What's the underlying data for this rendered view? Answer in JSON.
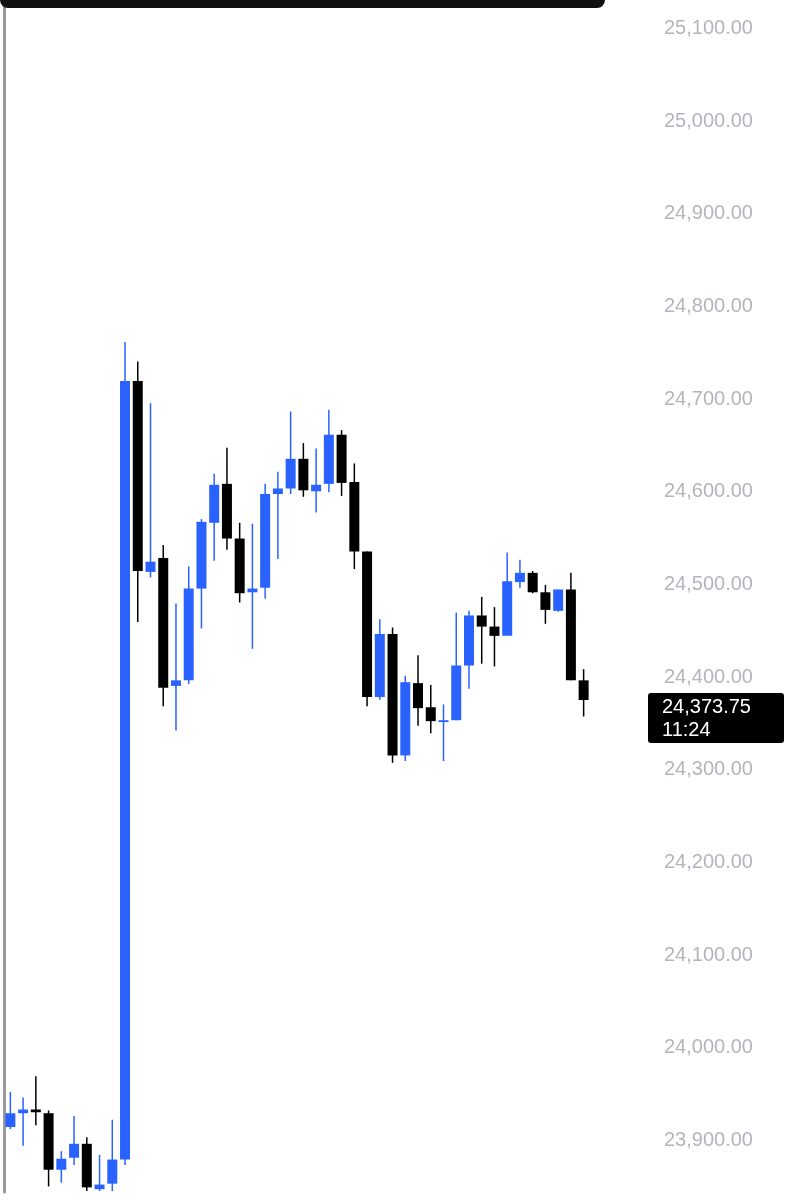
{
  "chart_data": {
    "type": "candlestick",
    "categories": [
      null,
      null,
      null,
      null,
      null,
      null,
      null,
      null,
      null,
      null,
      null,
      null,
      null,
      null,
      null,
      null,
      null,
      null,
      null,
      null,
      null,
      null,
      null,
      null,
      null,
      null,
      null,
      null,
      null,
      null,
      null,
      null,
      null,
      null,
      null,
      null,
      null,
      null,
      null,
      null,
      null,
      null,
      null,
      null,
      null,
      null
    ],
    "ohlc": [
      [
        23913,
        23951,
        23911,
        23928
      ],
      [
        23928,
        23945,
        23893,
        23932
      ],
      [
        23932,
        23968,
        23915,
        23929
      ],
      [
        23928,
        23931,
        23849,
        23867
      ],
      [
        23867,
        23887,
        23853,
        23879
      ],
      [
        23880,
        23925,
        23872,
        23895
      ],
      [
        23895,
        23902,
        23844,
        23848
      ],
      [
        23846,
        23883,
        23844,
        23851
      ],
      [
        23852,
        23921,
        23844,
        23878
      ],
      [
        23878,
        24760,
        23872,
        24718
      ],
      [
        24718,
        24739,
        24458,
        24513
      ],
      [
        24512,
        24694,
        24506,
        24523
      ],
      [
        24527,
        24541,
        24367,
        24387
      ],
      [
        24389,
        24478,
        24341,
        24395
      ],
      [
        24395,
        24518,
        24391,
        24494
      ],
      [
        24494,
        24569,
        24451,
        24566
      ],
      [
        24565,
        24618,
        24524,
        24606
      ],
      [
        24607,
        24646,
        24536,
        24548
      ],
      [
        24548,
        24565,
        24479,
        24489
      ],
      [
        24490,
        24564,
        24429,
        24494
      ],
      [
        24495,
        24607,
        24483,
        24596
      ],
      [
        24596,
        24620,
        24526,
        24602
      ],
      [
        24602,
        24685,
        24596,
        24634
      ],
      [
        24634,
        24651,
        24593,
        24600
      ],
      [
        24599,
        24645,
        24576,
        24606
      ],
      [
        24607,
        24687,
        24598,
        24660
      ],
      [
        24660,
        24665,
        24594,
        24608
      ],
      [
        24609,
        24629,
        24515,
        24534
      ],
      [
        24534,
        24534,
        24367,
        24377
      ],
      [
        24377,
        24461,
        24374,
        24445
      ],
      [
        24445,
        24452,
        24306,
        24314
      ],
      [
        24314,
        24400,
        24308,
        24393
      ],
      [
        24392,
        24422,
        24346,
        24365
      ],
      [
        24366,
        24390,
        24338,
        24351
      ],
      [
        24350,
        24369,
        24308,
        24352
      ],
      [
        24352,
        24468,
        24352,
        24411
      ],
      [
        24411,
        24470,
        24386,
        24465
      ],
      [
        24465,
        24485,
        24413,
        24453
      ],
      [
        24453,
        24474,
        24410,
        24443
      ],
      [
        24443,
        24533,
        24443,
        24502
      ],
      [
        24501,
        24525,
        24495,
        24511
      ],
      [
        24511,
        24513,
        24489,
        24490
      ],
      [
        24490,
        24498,
        24456,
        24471
      ],
      [
        24470,
        24493,
        24469,
        24493
      ],
      [
        24493,
        24511,
        24395,
        24395
      ],
      [
        24395,
        24407,
        24356,
        24373.75
      ]
    ],
    "colors": [
      "#2962ff",
      "#2962ff",
      "#000000",
      "#000000",
      "#2962ff",
      "#2962ff",
      "#000000",
      "#2962ff",
      "#2962ff",
      "#2962ff",
      "#000000",
      "#2962ff",
      "#000000",
      "#2962ff",
      "#2962ff",
      "#2962ff",
      "#2962ff",
      "#000000",
      "#000000",
      "#2962ff",
      "#2962ff",
      "#2962ff",
      "#2962ff",
      "#000000",
      "#2962ff",
      "#2962ff",
      "#000000",
      "#000000",
      "#000000",
      "#2962ff",
      "#000000",
      "#2962ff",
      "#000000",
      "#000000",
      "#2962ff",
      "#2962ff",
      "#2962ff",
      "#000000",
      "#000000",
      "#2962ff",
      "#2962ff",
      "#000000",
      "#000000",
      "#2962ff",
      "#000000",
      "#000000"
    ],
    "ylim": [
      23843,
      25129
    ],
    "yticks": [
      {
        "value": 23900,
        "label": "23,900.00"
      },
      {
        "value": 24000,
        "label": "24,000.00"
      },
      {
        "value": 24100,
        "label": "24,100.00"
      },
      {
        "value": 24200,
        "label": "24,200.00"
      },
      {
        "value": 24300,
        "label": "24,300.00"
      },
      {
        "value": 24400,
        "label": "24,400.00"
      },
      {
        "value": 24500,
        "label": "24,500.00"
      },
      {
        "value": 24600,
        "label": "24,600.00"
      },
      {
        "value": 24700,
        "label": "24,700.00"
      },
      {
        "value": 24800,
        "label": "24,800.00"
      },
      {
        "value": 24900,
        "label": "24,900.00"
      },
      {
        "value": 25000,
        "label": "25,000.00"
      },
      {
        "value": 25100,
        "label": "25,100.00"
      }
    ],
    "annotations": [
      "24,373.75\n11:24"
    ],
    "grid": false
  }
}
